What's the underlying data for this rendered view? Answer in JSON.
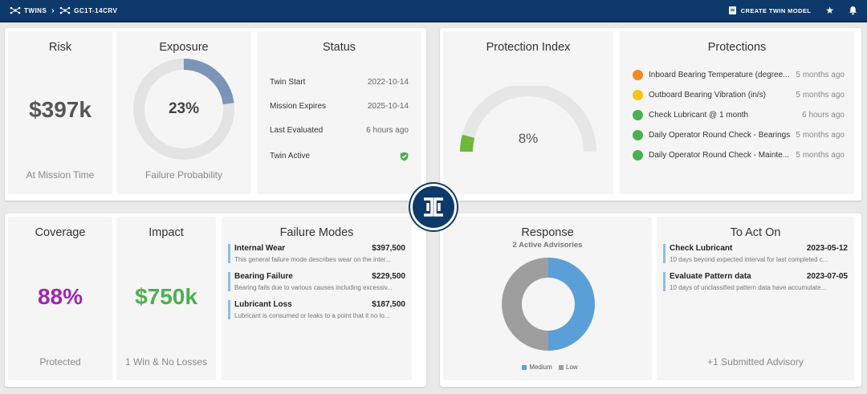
{
  "breadcrumb": {
    "root": "TWINS",
    "current": "GC1T-14CRV"
  },
  "toolbar": {
    "create_label": "CREATE TWIN MODEL",
    "star_icon": "star-icon",
    "bell_icon": "bell-icon"
  },
  "risk": {
    "title": "Risk",
    "value": "$397k",
    "subtitle": "At Mission Time"
  },
  "exposure": {
    "title": "Exposure",
    "value": "23%",
    "fraction": 0.23,
    "subtitle": "Failure Probability"
  },
  "status": {
    "title": "Status",
    "rows": [
      {
        "label": "Twin Start",
        "value": "2022-10-14"
      },
      {
        "label": "Mission Expires",
        "value": "2025-10-14"
      },
      {
        "label": "Last Evaluated",
        "value": "6 hours ago"
      },
      {
        "label": "Twin Active",
        "value": ""
      }
    ]
  },
  "protection_index": {
    "title": "Protection Index",
    "value": "8%",
    "fraction": 0.08
  },
  "protections": {
    "title": "Protections",
    "items": [
      {
        "label": "Inboard Bearing Temperature (degree...",
        "time": "5 months ago",
        "color": "#ef8a22"
      },
      {
        "label": "Outboard Bearing Vibration (in/s)",
        "time": "5 months ago",
        "color": "#f5c518"
      },
      {
        "label": "Check Lubricant @ 1 month",
        "time": "6 hours ago",
        "color": "#4caf50"
      },
      {
        "label": "Daily Operator Round Check - Bearings",
        "time": "5 months ago",
        "color": "#4caf50"
      },
      {
        "label": "Daily Operator Round Check - Mainte...",
        "time": "5 months ago",
        "color": "#4caf50"
      }
    ]
  },
  "coverage": {
    "title": "Coverage",
    "value": "88%",
    "subtitle": "Protected",
    "color": "#9c27b0"
  },
  "impact": {
    "title": "Impact",
    "value": "$750k",
    "subtitle": "1 Win & No Losses",
    "color": "#4caf50"
  },
  "failure_modes": {
    "title": "Failure Modes",
    "items": [
      {
        "name": "Internal Wear",
        "amount": "$397,500",
        "desc": "This general failure mode describes wear on the inter..."
      },
      {
        "name": "Bearing Failure",
        "amount": "$229,500",
        "desc": "Bearing fails due to various causes including excessiv..."
      },
      {
        "name": "Lubricant Loss",
        "amount": "$187,500",
        "desc": "Lubricant is consumed or leaks to a point that it no lo..."
      }
    ]
  },
  "response": {
    "title": "Response",
    "subtitle": "2 Active Advisories",
    "legend": [
      {
        "label": "Medium",
        "color": "#5b9fd8"
      },
      {
        "label": "Low",
        "color": "#9e9e9e"
      }
    ]
  },
  "chart_data": {
    "type": "pie",
    "categories": [
      "Medium",
      "Low"
    ],
    "values": [
      1,
      1
    ],
    "colors": [
      "#5b9fd8",
      "#9e9e9e"
    ]
  },
  "to_act_on": {
    "title": "To Act On",
    "items": [
      {
        "name": "Check Lubricant",
        "date": "2023-05-12",
        "desc": "10 days beyond expected interval for last completed c..."
      },
      {
        "name": "Evaluate Pattern data",
        "date": "2023-07-05",
        "desc": "10 days of unclassified pattern data have accumulate..."
      }
    ],
    "footer": "+1 Submitted Advisory"
  }
}
